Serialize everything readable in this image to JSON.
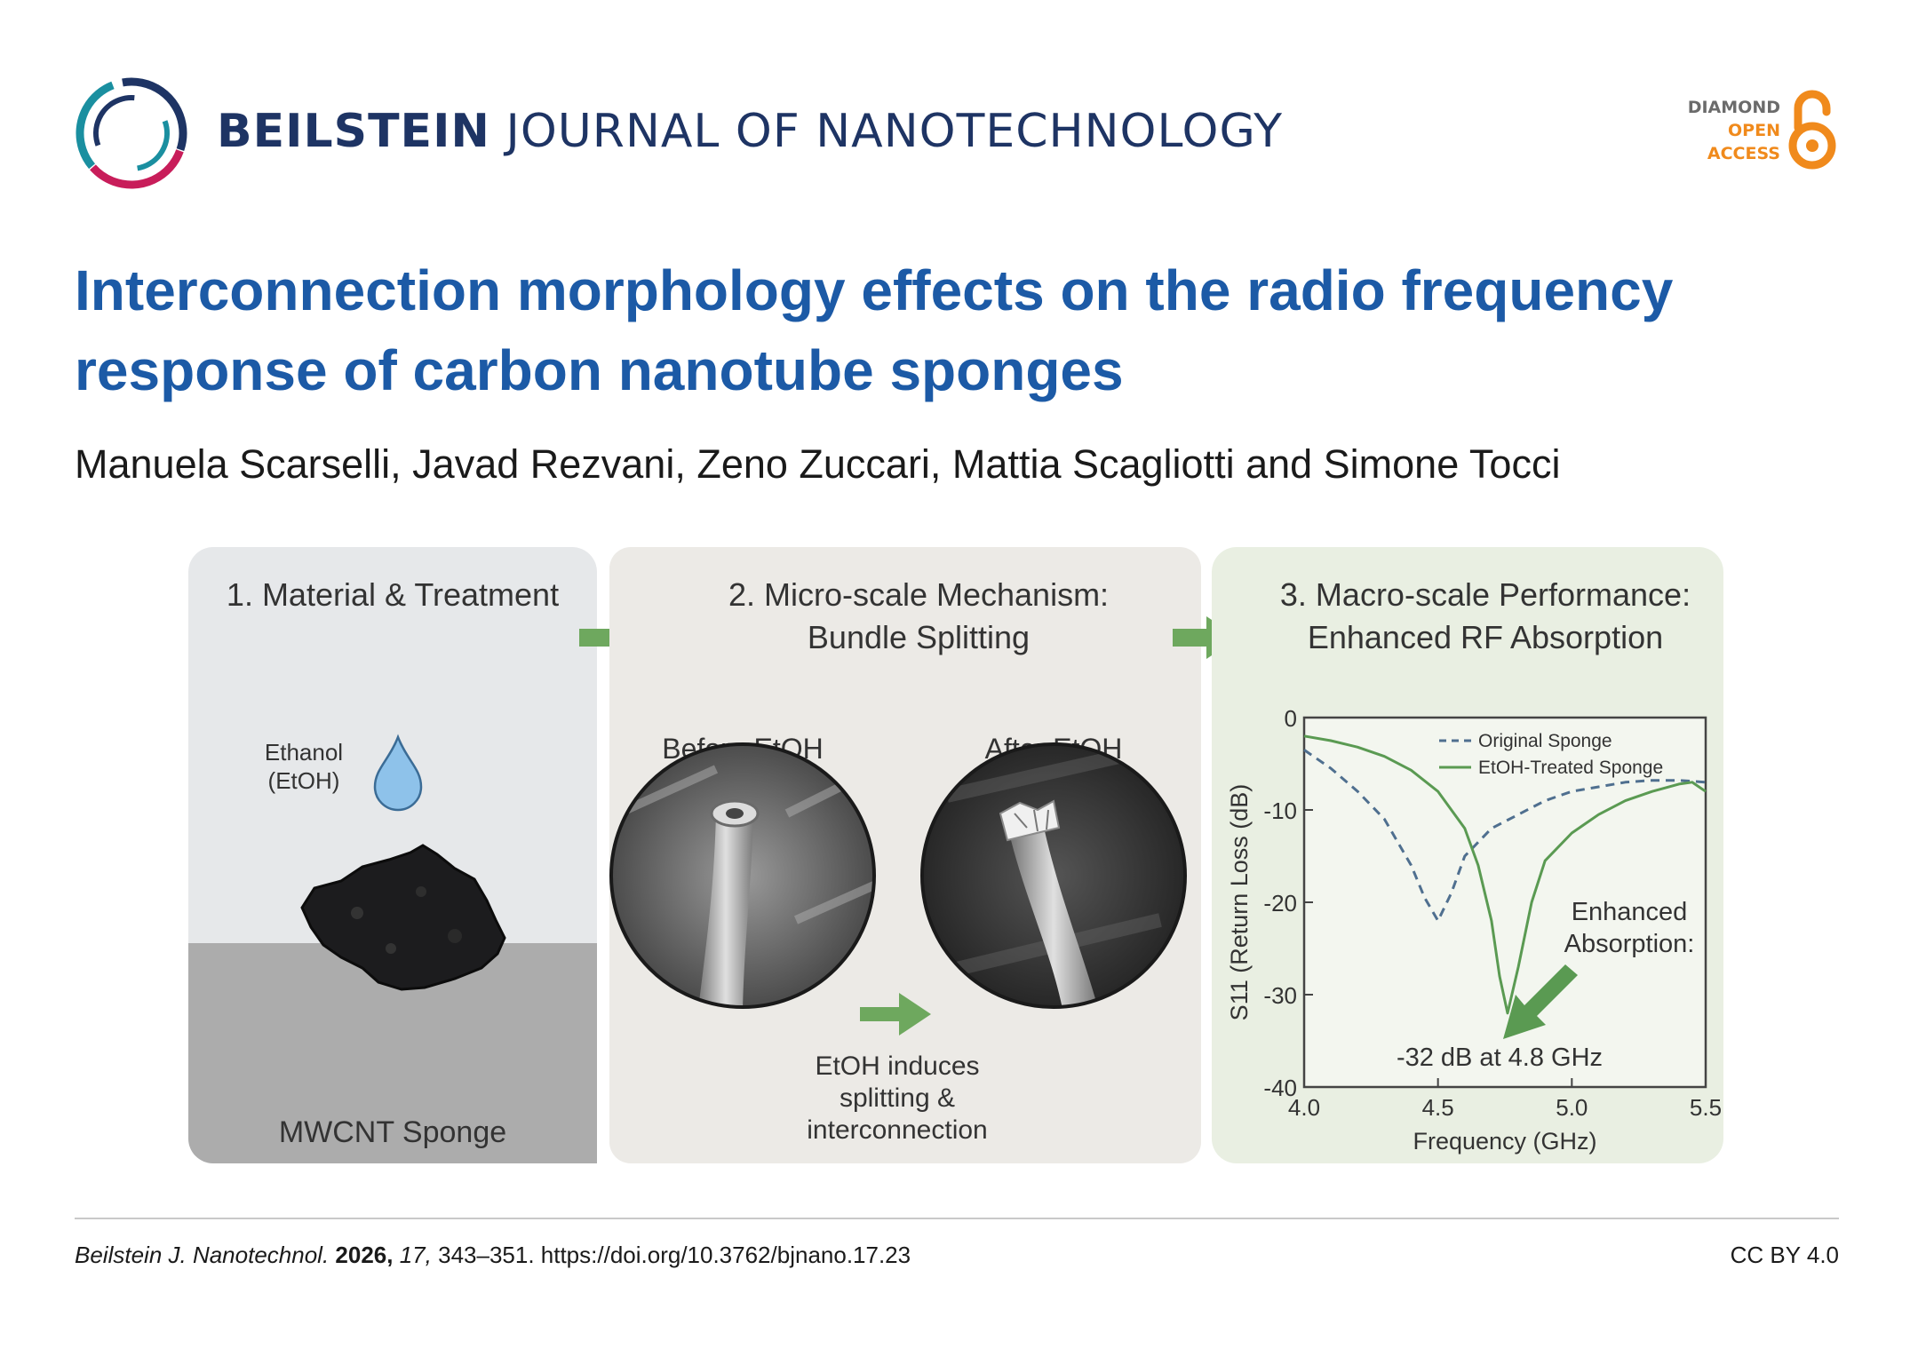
{
  "header": {
    "journal_brand": "BEILSTEIN",
    "journal_rest": "JOURNAL OF NANOTECHNOLOGY",
    "badge": {
      "line1": "DIAMOND",
      "line2": "OPEN",
      "line3": "ACCESS"
    }
  },
  "article": {
    "title": "Interconnection morphology effects on the radio frequency response of carbon nanotube sponges",
    "authors": "Manuela Scarselli, Javad Rezvani, Zeno Zuccari, Mattia Scagliotti and Simone Tocci"
  },
  "figure": {
    "panel1": {
      "title": "1. Material & Treatment",
      "drop_label_1": "Ethanol",
      "drop_label_2": "(EtOH)",
      "sponge_label": "MWCNT Sponge"
    },
    "panel2": {
      "title_1": "2. Micro-scale Mechanism:",
      "title_2": "Bundle Splitting",
      "before_label": "Before EtOH",
      "after_label": "After EtOH",
      "caption_1": "EtOH induces",
      "caption_2": "splitting &",
      "caption_3": "interconnection"
    },
    "panel3": {
      "title_1": "3. Macro-scale Performance:",
      "title_2": "Enhanced RF Absorption",
      "annotation_1": "Enhanced",
      "annotation_2": "Absorption:",
      "annotation_3": "-32 dB at 4.8 GHz"
    }
  },
  "chart_data": {
    "type": "line",
    "xlabel": "Frequency (GHz)",
    "ylabel": "S11 (Return Loss (dB)",
    "xlim": [
      4.0,
      5.5
    ],
    "ylim": [
      -40,
      0
    ],
    "x_ticks": [
      "4.0",
      "4.5",
      "5.0",
      "5.5"
    ],
    "y_ticks": [
      "0",
      "-10",
      "-20",
      "-30",
      "-40"
    ],
    "legend": "top-right",
    "series": [
      {
        "name": "Original Sponge",
        "style": "dashed",
        "color": "#4f6f8f",
        "x": [
          4.0,
          4.1,
          4.2,
          4.3,
          4.4,
          4.45,
          4.5,
          4.55,
          4.6,
          4.7,
          4.8,
          4.9,
          5.0,
          5.1,
          5.2,
          5.3,
          5.4,
          5.5
        ],
        "y": [
          -3.5,
          -5.5,
          -8,
          -11,
          -16,
          -19.5,
          -22,
          -19,
          -15,
          -12,
          -10.5,
          -9,
          -8,
          -7.5,
          -7,
          -6.8,
          -6.8,
          -7
        ]
      },
      {
        "name": "EtOH-Treated Sponge",
        "style": "solid",
        "color": "#5a9a52",
        "x": [
          4.0,
          4.1,
          4.2,
          4.3,
          4.4,
          4.5,
          4.6,
          4.65,
          4.7,
          4.73,
          4.76,
          4.8,
          4.85,
          4.9,
          5.0,
          5.1,
          5.2,
          5.3,
          5.4,
          5.45,
          5.5
        ],
        "y": [
          -2,
          -2.5,
          -3.2,
          -4.2,
          -5.7,
          -8,
          -12,
          -16,
          -22,
          -28,
          -32,
          -27,
          -20,
          -15.5,
          -12.5,
          -10.5,
          -9,
          -8,
          -7.2,
          -7,
          -8
        ]
      }
    ]
  },
  "footer": {
    "journal_abbrev": "Beilstein J. Nanotechnol.",
    "year": "2026,",
    "volume": "17,",
    "pages_doi": "343–351. https://doi.org/10.3762/bjnano.17.23",
    "license": "CC BY 4.0"
  }
}
